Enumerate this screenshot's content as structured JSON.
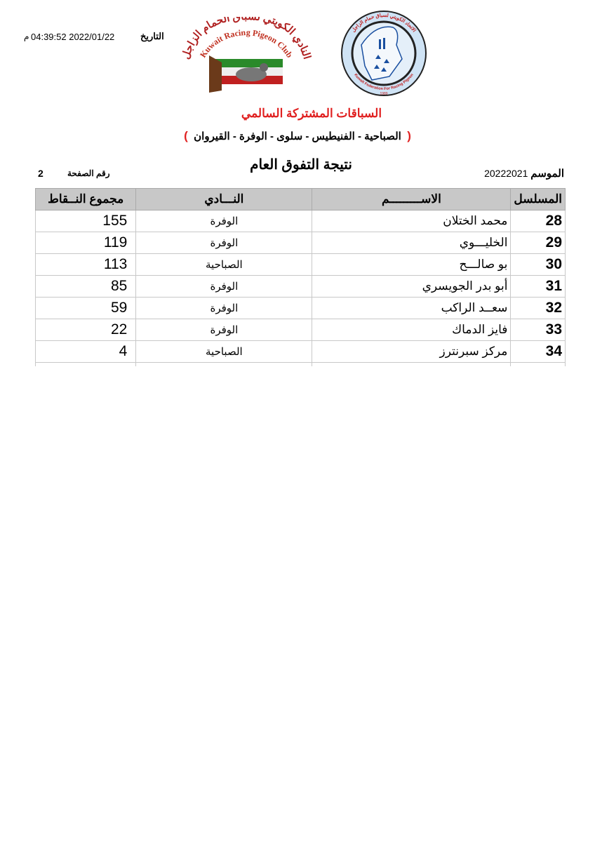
{
  "header": {
    "date_label": "التاريخ",
    "date_value": "04:39:52 2022/01/22",
    "date_suffix": "م",
    "club_logo_text": [
      "النادي الكويتي لسباق الحمام الزاجل",
      "Kuwait Racing Pigeon Club"
    ],
    "federation_logo_text": [
      "الاتحاد الكويتي لسباق حمام الزاجل",
      "Kuwait Federation For Racing Pigeon",
      "1989"
    ],
    "event_title": "السباقات المشتركة السالمي",
    "clubs_line": {
      "open": "(",
      "text": "الصباحية - الفنيطيس - سلوى - الوفرة - القيروان",
      "close": ")"
    },
    "report_title": "نتيجة التفوق العام",
    "season_label": "الموسم",
    "season_value": "20222021",
    "page_label": "رقم الصفحة",
    "page_number": "2"
  },
  "table": {
    "columns": {
      "serial": "المسلسل",
      "name": "الاســـــــــم",
      "club": "النـــادي",
      "points": "مجموع النــقاط"
    },
    "rows": [
      {
        "serial": "28",
        "name": "محمد الختلان",
        "club": "الوفرة",
        "points": "155"
      },
      {
        "serial": "29",
        "name": "الخليـــوي",
        "club": "الوفرة",
        "points": "119"
      },
      {
        "serial": "30",
        "name": "بو صالـــح",
        "club": "الصباحية",
        "points": "113"
      },
      {
        "serial": "31",
        "name": "أبو بدر الجويسري",
        "club": "الوفرة",
        "points": "85"
      },
      {
        "serial": "32",
        "name": "سعــد الراكب",
        "club": "الوفرة",
        "points": "59"
      },
      {
        "serial": "33",
        "name": "فايز الدماك",
        "club": "الوفرة",
        "points": "22"
      },
      {
        "serial": "34",
        "name": "مركز سبرنترز",
        "club": "الصباحية",
        "points": "4"
      }
    ]
  },
  "colors": {
    "accent_red": "#e02020",
    "header_gray": "#c8c8c8",
    "logo_blue": "#1a4fa0"
  }
}
